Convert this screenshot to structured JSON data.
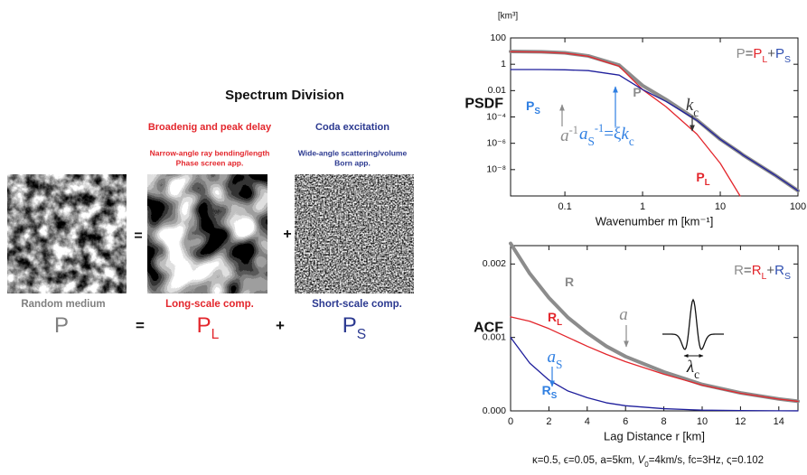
{
  "diagram": {
    "title": "Spectrum Division",
    "long_heading": "Broadenig and peak delay",
    "short_heading": "Coda excitation",
    "long_detail": [
      "Narrow-angle ray bending/length",
      "Phase screen app."
    ],
    "short_detail": [
      "Wide-angle scattering/volume",
      "Born app."
    ],
    "captions": [
      "Random medium",
      "Long-scale comp.",
      "Short-scale comp."
    ],
    "operators": [
      "=",
      "+"
    ],
    "equation": [
      {
        "t": "P"
      },
      {
        "t": "="
      },
      {
        "t": "P",
        "sub": "L"
      },
      {
        "t": "+"
      },
      {
        "t": "P",
        "sub": "S"
      }
    ]
  },
  "chart_data": [
    {
      "type": "line",
      "panel_label": "PSDF",
      "y_unit": "[km³]",
      "xlabel": "Wavenumber m [km⁻¹]",
      "xlog": true,
      "ylog": true,
      "xlim": [
        0.02,
        100
      ],
      "ylim": [
        1e-10,
        100
      ],
      "xticks": [
        0.1,
        1,
        10,
        100
      ],
      "yticks": [
        100,
        1,
        0.01,
        {
          "value": 0.0001,
          "label": "10⁻⁴"
        },
        {
          "value": 1e-06,
          "label": "10⁻⁶"
        },
        {
          "value": 1e-08,
          "label": "10⁻⁸"
        }
      ],
      "x": [
        0.02,
        0.05,
        0.1,
        0.2,
        0.5,
        1,
        2,
        5,
        10,
        18,
        20,
        50,
        100
      ],
      "series": [
        {
          "name": "P",
          "color": "#8c8c8c",
          "width": 4,
          "values": [
            9.4,
            8.9,
            7.4,
            4.3,
            0.85,
            0.024,
            0.0021,
            6e-05,
            2e-06,
            1.9e-07,
            1.2e-07,
            4e-09,
            2.5e-10
          ]
        },
        {
          "name": "P",
          "sub": "L",
          "color": "#e3262c",
          "width": 1.3,
          "values": [
            9,
            8.5,
            7,
            4,
            0.7,
            0.012,
            0.0006,
            5e-06,
            3e-08,
            1e-10,
            null,
            null,
            null
          ]
        },
        {
          "name": "P",
          "sub": "S",
          "color": "#1f1f9c",
          "label_color": "#2f7fe2",
          "width": 1.3,
          "values": [
            0.4,
            0.4,
            0.38,
            0.33,
            0.15,
            0.012,
            0.0015,
            5.5e-05,
            2e-06,
            1.9e-07,
            1.2e-07,
            4e-09,
            2.5e-10
          ]
        }
      ],
      "formula": [
        {
          "t": "P",
          "color": "#8c8c8c"
        },
        {
          "t": "=",
          "color": "#555555"
        },
        {
          "t": "P",
          "sub": "L",
          "color": "#e3262c"
        },
        {
          "t": "+",
          "color": "#555555"
        },
        {
          "t": "P",
          "sub": "S",
          "color": "#2f4fb0"
        }
      ],
      "annotations": [
        {
          "color": "#8c8c8c",
          "parts": [
            {
              "t": "a",
              "italic": true
            },
            {
              "t": "-1",
              "sup": true
            }
          ]
        },
        {
          "color": "#333333",
          "parts": [
            {
              "t": "k",
              "italic": true
            },
            {
              "t": "c",
              "sub": true
            }
          ]
        },
        {
          "color": "#2f7fe2",
          "parts": [
            {
              "t": "a",
              "italic": true
            },
            {
              "t": "S",
              "sub": true
            },
            {
              "t": "-1",
              "sup": true
            },
            {
              "t": "=ξ"
            },
            {
              "t": "k",
              "italic": true
            },
            {
              "t": "c",
              "sub": true
            }
          ]
        }
      ]
    },
    {
      "type": "line",
      "panel_label": "ACF",
      "xlabel": "Lag Distance r [km]",
      "xlim": [
        0,
        15
      ],
      "ylim": [
        0,
        0.00225
      ],
      "xticks": [
        0,
        2,
        4,
        6,
        8,
        10,
        12,
        14
      ],
      "yticks": [
        {
          "value": 0,
          "label": "0.000"
        },
        0.001,
        0.002
      ],
      "x": [
        0,
        1,
        2,
        3,
        4,
        5,
        6,
        8,
        10,
        12,
        14,
        15
      ],
      "series": [
        {
          "name": "R",
          "color": "#8c8c8c",
          "width": 4,
          "values": [
            0.00228,
            0.00187,
            0.00154,
            0.00127,
            0.00106,
            0.00088,
            0.00074,
            0.00053,
            0.00036,
            0.000245,
            0.000162,
            0.000131
          ]
        },
        {
          "name": "R",
          "sub": "L",
          "color": "#e3262c",
          "width": 1.3,
          "values": [
            0.00128,
            0.00122,
            0.00112,
            0.001,
            0.00088,
            0.00077,
            0.00067,
            0.0005,
            0.00035,
            0.00024,
            0.00016,
            0.00013
          ]
        },
        {
          "name": "R",
          "sub": "S",
          "color": "#1f1f9c",
          "label_color": "#2f7fe2",
          "width": 1.3,
          "values": [
            0.001,
            0.00065,
            0.00042,
            0.00027,
            0.00018,
            0.00011,
            7e-05,
            3e-05,
            1e-05,
            5e-06,
            2e-06,
            1e-06
          ]
        }
      ],
      "formula": [
        {
          "t": "R",
          "color": "#8c8c8c"
        },
        {
          "t": "=",
          "color": "#555555"
        },
        {
          "t": "R",
          "sub": "L",
          "color": "#e3262c"
        },
        {
          "t": "+",
          "color": "#555555"
        },
        {
          "t": "R",
          "sub": "S",
          "color": "#2f4fb0"
        }
      ],
      "annotations": [
        {
          "color": "#8c8c8c",
          "parts": [
            {
              "t": "a",
              "italic": true
            }
          ]
        },
        {
          "color": "#2f7fe2",
          "parts": [
            {
              "t": "a",
              "italic": true
            },
            {
              "t": "S",
              "sub": true
            }
          ]
        },
        {
          "color": "#111111",
          "parts": [
            {
              "t": "λ",
              "italic": true
            },
            {
              "t": "c",
              "sub": true
            }
          ]
        }
      ]
    }
  ],
  "footer": [
    {
      "t": "κ=0.5, ϵ=0.05, a=5km, "
    },
    {
      "t": "V",
      "italic": true
    },
    {
      "t": "0",
      "sub": true
    },
    {
      "t": "=4km/s, fc=3Hz, ς=0.102"
    }
  ]
}
